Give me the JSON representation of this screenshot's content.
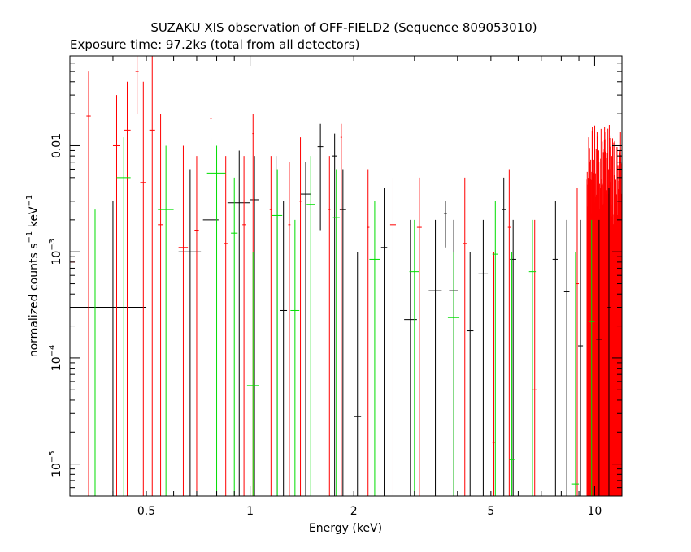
{
  "chart_data": {
    "type": "scatter",
    "title": "SUZAKU XIS observation of OFF-FIELD2 (Sequence 809053010)",
    "subtitle": "Exposure time: 97.2ks (total from all detectors)",
    "xlabel": "Energy (keV)",
    "ylabel": {
      "base": "normalized counts s",
      "mid": " keV",
      "sup": "−1"
    },
    "x_scale": "log",
    "y_scale": "log",
    "xlim": [
      0.3,
      12
    ],
    "ylim": [
      5e-06,
      0.07
    ],
    "x_ticks": [
      {
        "value": 0.5,
        "label": "0.5"
      },
      {
        "value": 1,
        "label": "1"
      },
      {
        "value": 2,
        "label": "2"
      },
      {
        "value": 5,
        "label": "5"
      },
      {
        "value": 10,
        "label": "10"
      }
    ],
    "y_ticks": [
      {
        "value": 0.01,
        "label": "0.01",
        "base": "",
        "exp": ""
      },
      {
        "value": 0.001,
        "label": "",
        "base": "10",
        "exp": "−3"
      },
      {
        "value": 0.0001,
        "label": "",
        "base": "10",
        "exp": "−4"
      },
      {
        "value": 1e-05,
        "label": "",
        "base": "10",
        "exp": "−5"
      }
    ],
    "grid": false,
    "legend": "none",
    "series": [
      {
        "color": "#000000",
        "points": [
          {
            "x": 0.4,
            "xlo": 0.3,
            "xhi": 0.5,
            "y": 0.0003,
            "ylo": 5e-06,
            "yhi": 0.003
          },
          {
            "x": 0.67,
            "xlo": 0.62,
            "xhi": 0.72,
            "y": 0.001,
            "ylo": 5e-06,
            "yhi": 0.006
          },
          {
            "x": 0.77,
            "xlo": 0.73,
            "xhi": 0.81,
            "y": 0.002,
            "ylo": 9.5e-05,
            "yhi": 0.012
          },
          {
            "x": 0.93,
            "xlo": 0.86,
            "xhi": 1.0,
            "y": 0.0029,
            "ylo": 5e-06,
            "yhi": 0.009
          },
          {
            "x": 1.03,
            "xlo": 1.0,
            "xhi": 1.06,
            "y": 0.0031,
            "ylo": 5e-06,
            "yhi": 0.008
          },
          {
            "x": 1.19,
            "xlo": 1.16,
            "xhi": 1.22,
            "y": 0.004,
            "ylo": 5e-06,
            "yhi": 0.008
          },
          {
            "x": 1.25,
            "xlo": 1.22,
            "xhi": 1.28,
            "y": 0.00028,
            "ylo": 5e-06,
            "yhi": 0.003
          },
          {
            "x": 1.45,
            "xlo": 1.4,
            "xhi": 1.5,
            "y": 0.0035,
            "ylo": 5e-06,
            "yhi": 0.007
          },
          {
            "x": 1.6,
            "xlo": 1.57,
            "xhi": 1.63,
            "y": 0.0098,
            "ylo": 0.0016,
            "yhi": 0.016
          },
          {
            "x": 1.76,
            "xlo": 1.73,
            "xhi": 1.79,
            "y": 0.008,
            "ylo": 5e-06,
            "yhi": 0.013
          },
          {
            "x": 1.86,
            "xlo": 1.82,
            "xhi": 1.9,
            "y": 0.0025,
            "ylo": 5e-06,
            "yhi": 0.006
          },
          {
            "x": 2.05,
            "xlo": 2.0,
            "xhi": 2.1,
            "y": 2.8e-05,
            "ylo": 5e-06,
            "yhi": 0.001
          },
          {
            "x": 2.45,
            "xlo": 2.4,
            "xhi": 2.5,
            "y": 0.0011,
            "ylo": 5e-06,
            "yhi": 0.004
          },
          {
            "x": 2.92,
            "xlo": 2.8,
            "xhi": 3.05,
            "y": 0.00023,
            "ylo": 5e-06,
            "yhi": 0.002
          },
          {
            "x": 3.45,
            "xlo": 3.3,
            "xhi": 3.6,
            "y": 0.00043,
            "ylo": 5e-06,
            "yhi": 0.002
          },
          {
            "x": 3.69,
            "xlo": 3.65,
            "xhi": 3.73,
            "y": 0.0023,
            "ylo": 0.0011,
            "yhi": 0.003
          },
          {
            "x": 3.9,
            "xlo": 3.78,
            "xhi": 4.02,
            "y": 0.00043,
            "ylo": 5e-06,
            "yhi": 0.002
          },
          {
            "x": 4.35,
            "xlo": 4.25,
            "xhi": 4.45,
            "y": 0.00018,
            "ylo": 5e-06,
            "yhi": 0.001
          },
          {
            "x": 4.75,
            "xlo": 4.6,
            "xhi": 4.9,
            "y": 0.00062,
            "ylo": 5e-06,
            "yhi": 0.002
          },
          {
            "x": 5.45,
            "xlo": 5.38,
            "xhi": 5.52,
            "y": 0.0025,
            "ylo": 5e-06,
            "yhi": 0.005
          },
          {
            "x": 5.8,
            "xlo": 5.68,
            "xhi": 5.92,
            "y": 0.00085,
            "ylo": 5e-06,
            "yhi": 0.002
          },
          {
            "x": 7.7,
            "xlo": 7.55,
            "xhi": 7.85,
            "y": 0.00085,
            "ylo": 5e-06,
            "yhi": 0.003
          },
          {
            "x": 8.3,
            "xlo": 8.15,
            "xhi": 8.45,
            "y": 0.00042,
            "ylo": 5e-06,
            "yhi": 0.002
          },
          {
            "x": 9.1,
            "xlo": 8.95,
            "xhi": 9.25,
            "y": 0.00013,
            "ylo": 5e-06,
            "yhi": 0.002
          },
          {
            "x": 10.3,
            "xlo": 10.1,
            "xhi": 10.5,
            "y": 0.00015,
            "ylo": 5e-06,
            "yhi": 0.002
          },
          {
            "x": 11.0,
            "xlo": 10.9,
            "xhi": 11.1,
            "y": 0.0003,
            "ylo": 5e-06,
            "yhi": 0.004
          }
        ]
      },
      {
        "color": "#ff0000",
        "points": [
          {
            "x": 0.3,
            "xlo": 0.3,
            "xhi": 0.31,
            "y": 0.0008,
            "ylo": 5e-06,
            "yhi": 0.03
          },
          {
            "x": 0.34,
            "xlo": 0.335,
            "xhi": 0.345,
            "y": 0.019,
            "ylo": 5e-06,
            "yhi": 0.05
          },
          {
            "x": 0.41,
            "xlo": 0.4,
            "xhi": 0.42,
            "y": 0.01,
            "ylo": 5e-06,
            "yhi": 0.03
          },
          {
            "x": 0.44,
            "xlo": 0.43,
            "xhi": 0.45,
            "y": 0.014,
            "ylo": 5e-06,
            "yhi": 0.04
          },
          {
            "x": 0.47,
            "xlo": 0.465,
            "xhi": 0.475,
            "y": 0.05,
            "ylo": 0.02,
            "yhi": 0.07
          },
          {
            "x": 0.49,
            "xlo": 0.48,
            "xhi": 0.5,
            "y": 0.0045,
            "ylo": 5e-06,
            "yhi": 0.04
          },
          {
            "x": 0.52,
            "xlo": 0.51,
            "xhi": 0.53,
            "y": 0.014,
            "ylo": 5e-06,
            "yhi": 0.07
          },
          {
            "x": 0.55,
            "xlo": 0.54,
            "xhi": 0.56,
            "y": 0.0018,
            "ylo": 5e-06,
            "yhi": 0.02
          },
          {
            "x": 0.64,
            "xlo": 0.62,
            "xhi": 0.66,
            "y": 0.0011,
            "ylo": 5e-06,
            "yhi": 0.01
          },
          {
            "x": 0.7,
            "xlo": 0.69,
            "xhi": 0.71,
            "y": 0.0016,
            "ylo": 5e-06,
            "yhi": 0.008
          },
          {
            "x": 0.77,
            "xlo": 0.765,
            "xhi": 0.775,
            "y": 0.018,
            "ylo": 0.012,
            "yhi": 0.025
          },
          {
            "x": 0.85,
            "xlo": 0.84,
            "xhi": 0.86,
            "y": 0.0012,
            "ylo": 5e-06,
            "yhi": 0.008
          },
          {
            "x": 0.96,
            "xlo": 0.95,
            "xhi": 0.97,
            "y": 0.0018,
            "ylo": 5e-06,
            "yhi": 0.008
          },
          {
            "x": 1.02,
            "xlo": 1.015,
            "xhi": 1.025,
            "y": 0.013,
            "ylo": 5e-06,
            "yhi": 0.02
          },
          {
            "x": 1.15,
            "xlo": 1.14,
            "xhi": 1.16,
            "y": 0.0025,
            "ylo": 5e-06,
            "yhi": 0.008
          },
          {
            "x": 1.3,
            "xlo": 1.29,
            "xhi": 1.31,
            "y": 0.0018,
            "ylo": 5e-06,
            "yhi": 0.007
          },
          {
            "x": 1.4,
            "xlo": 1.39,
            "xhi": 1.41,
            "y": 0.003,
            "ylo": 5e-06,
            "yhi": 0.012
          },
          {
            "x": 1.7,
            "xlo": 1.69,
            "xhi": 1.71,
            "y": 0.0025,
            "ylo": 5e-06,
            "yhi": 0.008
          },
          {
            "x": 1.84,
            "xlo": 1.83,
            "xhi": 1.85,
            "y": 0.012,
            "ylo": 5e-06,
            "yhi": 0.016
          },
          {
            "x": 2.2,
            "xlo": 2.18,
            "xhi": 2.22,
            "y": 0.0017,
            "ylo": 5e-06,
            "yhi": 0.006
          },
          {
            "x": 2.6,
            "xlo": 2.55,
            "xhi": 2.65,
            "y": 0.0018,
            "ylo": 5e-06,
            "yhi": 0.005
          },
          {
            "x": 3.1,
            "xlo": 3.05,
            "xhi": 3.15,
            "y": 0.0017,
            "ylo": 5e-06,
            "yhi": 0.005
          },
          {
            "x": 4.2,
            "xlo": 4.15,
            "xhi": 4.25,
            "y": 0.0012,
            "ylo": 5e-06,
            "yhi": 0.005
          },
          {
            "x": 5.1,
            "xlo": 5.05,
            "xhi": 5.15,
            "y": 1.6e-05,
            "ylo": 5e-06,
            "yhi": 0.001
          },
          {
            "x": 5.65,
            "xlo": 5.6,
            "xhi": 5.7,
            "y": 0.0017,
            "ylo": 5e-06,
            "yhi": 0.006
          },
          {
            "x": 6.7,
            "xlo": 6.6,
            "xhi": 6.8,
            "y": 5e-05,
            "ylo": 5e-06,
            "yhi": 0.002
          },
          {
            "x": 8.9,
            "xlo": 8.8,
            "xhi": 9.0,
            "y": 0.0005,
            "ylo": 5e-06,
            "yhi": 0.004
          }
        ]
      },
      {
        "color": "#00dd00",
        "points": [
          {
            "x": 0.355,
            "xlo": 0.3,
            "xhi": 0.41,
            "y": 0.00075,
            "ylo": 5e-06,
            "yhi": 0.0025
          },
          {
            "x": 0.43,
            "xlo": 0.41,
            "xhi": 0.45,
            "y": 0.005,
            "ylo": 5e-06,
            "yhi": 0.012
          },
          {
            "x": 0.57,
            "xlo": 0.54,
            "xhi": 0.6,
            "y": 0.0025,
            "ylo": 5e-06,
            "yhi": 0.01
          },
          {
            "x": 0.8,
            "xlo": 0.75,
            "xhi": 0.85,
            "y": 0.0055,
            "ylo": 5e-06,
            "yhi": 0.01
          },
          {
            "x": 0.9,
            "xlo": 0.88,
            "xhi": 0.92,
            "y": 0.0015,
            "ylo": 5e-06,
            "yhi": 0.005
          },
          {
            "x": 1.02,
            "xlo": 0.98,
            "xhi": 1.06,
            "y": 5.5e-05,
            "ylo": 5e-06,
            "yhi": 0.001
          },
          {
            "x": 1.2,
            "xlo": 1.16,
            "xhi": 1.24,
            "y": 0.0022,
            "ylo": 5e-06,
            "yhi": 0.006
          },
          {
            "x": 1.35,
            "xlo": 1.31,
            "xhi": 1.39,
            "y": 0.00028,
            "ylo": 5e-06,
            "yhi": 0.002
          },
          {
            "x": 1.5,
            "xlo": 1.46,
            "xhi": 1.54,
            "y": 0.0028,
            "ylo": 5e-06,
            "yhi": 0.008
          },
          {
            "x": 1.78,
            "xlo": 1.74,
            "xhi": 1.82,
            "y": 0.0021,
            "ylo": 5e-06,
            "yhi": 0.006
          },
          {
            "x": 2.3,
            "xlo": 2.22,
            "xhi": 2.38,
            "y": 0.00085,
            "ylo": 5e-06,
            "yhi": 0.003
          },
          {
            "x": 3.0,
            "xlo": 2.9,
            "xhi": 3.1,
            "y": 0.00065,
            "ylo": 5e-06,
            "yhi": 0.002
          },
          {
            "x": 3.9,
            "xlo": 3.75,
            "xhi": 4.05,
            "y": 0.00024,
            "ylo": 5e-06,
            "yhi": 0.001
          },
          {
            "x": 5.15,
            "xlo": 5.05,
            "xhi": 5.25,
            "y": 0.00095,
            "ylo": 5e-06,
            "yhi": 0.003
          },
          {
            "x": 5.75,
            "xlo": 5.65,
            "xhi": 5.85,
            "y": 1.1e-05,
            "ylo": 5e-06,
            "yhi": 0.001
          },
          {
            "x": 6.6,
            "xlo": 6.45,
            "xhi": 6.75,
            "y": 0.00065,
            "ylo": 5e-06,
            "yhi": 0.002
          },
          {
            "x": 8.8,
            "xlo": 8.6,
            "xhi": 9.0,
            "y": 6.5e-06,
            "ylo": 5e-06,
            "yhi": 0.001
          },
          {
            "x": 9.8,
            "xlo": 9.6,
            "xhi": 10.0,
            "y": 0.00022,
            "ylo": 5e-06,
            "yhi": 0.002
          }
        ]
      }
    ],
    "high_energy_red_band": {
      "color": "#ff0000",
      "xlim": [
        9.5,
        12.0
      ],
      "ylim": [
        5e-06,
        0.016
      ]
    }
  }
}
